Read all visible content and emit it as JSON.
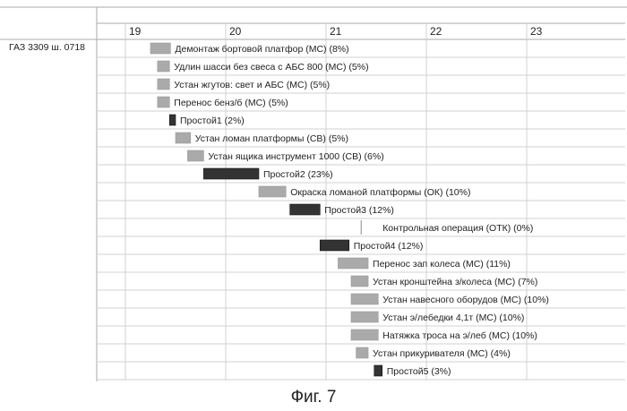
{
  "caption": "Фиг. 7",
  "chart_data": {
    "type": "gantt",
    "resource": "ГАЗ 3309 ш. 0718",
    "x_ticks": [
      "19",
      "20",
      "21",
      "22",
      "23"
    ],
    "xlim": [
      18.75,
      23.8
    ],
    "grid": true,
    "colors": {
      "task": "#aaaaaa",
      "idle": "#333333",
      "grid": "#d0d0d0",
      "rule": "#aaaaaa"
    },
    "tasks": [
      {
        "label": "Демонтаж бортовой платфор (МС) (8%)",
        "start": 19.25,
        "end": 19.45,
        "kind": "task"
      },
      {
        "label": "Удлин шасси без свеса с АБС 800 (МС) (5%)",
        "start": 19.32,
        "end": 19.44,
        "kind": "task"
      },
      {
        "label": "Устан жгутов: свет и АБС (МС) (5%)",
        "start": 19.32,
        "end": 19.44,
        "kind": "task"
      },
      {
        "label": "Перенос бенз/б (МС) (5%)",
        "start": 19.32,
        "end": 19.44,
        "kind": "task"
      },
      {
        "label": "Простой1 (2%)",
        "start": 19.44,
        "end": 19.5,
        "kind": "idle"
      },
      {
        "label": "Устан ломан платформы (СВ) (5%)",
        "start": 19.5,
        "end": 19.65,
        "kind": "task"
      },
      {
        "label": "Устан ящика инструмент 1000 (СВ) (6%)",
        "start": 19.62,
        "end": 19.78,
        "kind": "task"
      },
      {
        "label": "Простой2 (23%)",
        "start": 19.78,
        "end": 20.33,
        "kind": "idle"
      },
      {
        "label": "Окраска ломаной платформы (ОК) (10%)",
        "start": 20.33,
        "end": 20.6,
        "kind": "task"
      },
      {
        "label": "Простой3 (12%)",
        "start": 20.64,
        "end": 20.94,
        "kind": "idle"
      },
      {
        "label": "Контрольная операция (ОТК) (0%)",
        "start": 21.35,
        "end": 21.35,
        "kind": "milestone"
      },
      {
        "label": "Простой4 (12%)",
        "start": 20.94,
        "end": 21.23,
        "kind": "idle"
      },
      {
        "label": "Перенос зап колеса (МС) (11%)",
        "start": 21.12,
        "end": 21.42,
        "kind": "task"
      },
      {
        "label": "Устан кронштейна з/колеса (МС) (7%)",
        "start": 21.25,
        "end": 21.42,
        "kind": "task"
      },
      {
        "label": "Устан навесного оборудов (МС) (10%)",
        "start": 21.25,
        "end": 21.52,
        "kind": "task"
      },
      {
        "label": "Устан э/лебедки 4,1т (МС) (10%)",
        "start": 21.25,
        "end": 21.52,
        "kind": "task"
      },
      {
        "label": "Натяжка троса на э/леб (МС) (10%)",
        "start": 21.25,
        "end": 21.52,
        "kind": "task"
      },
      {
        "label": "Устан прикуривателя (МС) (4%)",
        "start": 21.3,
        "end": 21.42,
        "kind": "task"
      },
      {
        "label": "Простой5 (3%)",
        "start": 21.48,
        "end": 21.56,
        "kind": "idle"
      }
    ]
  }
}
